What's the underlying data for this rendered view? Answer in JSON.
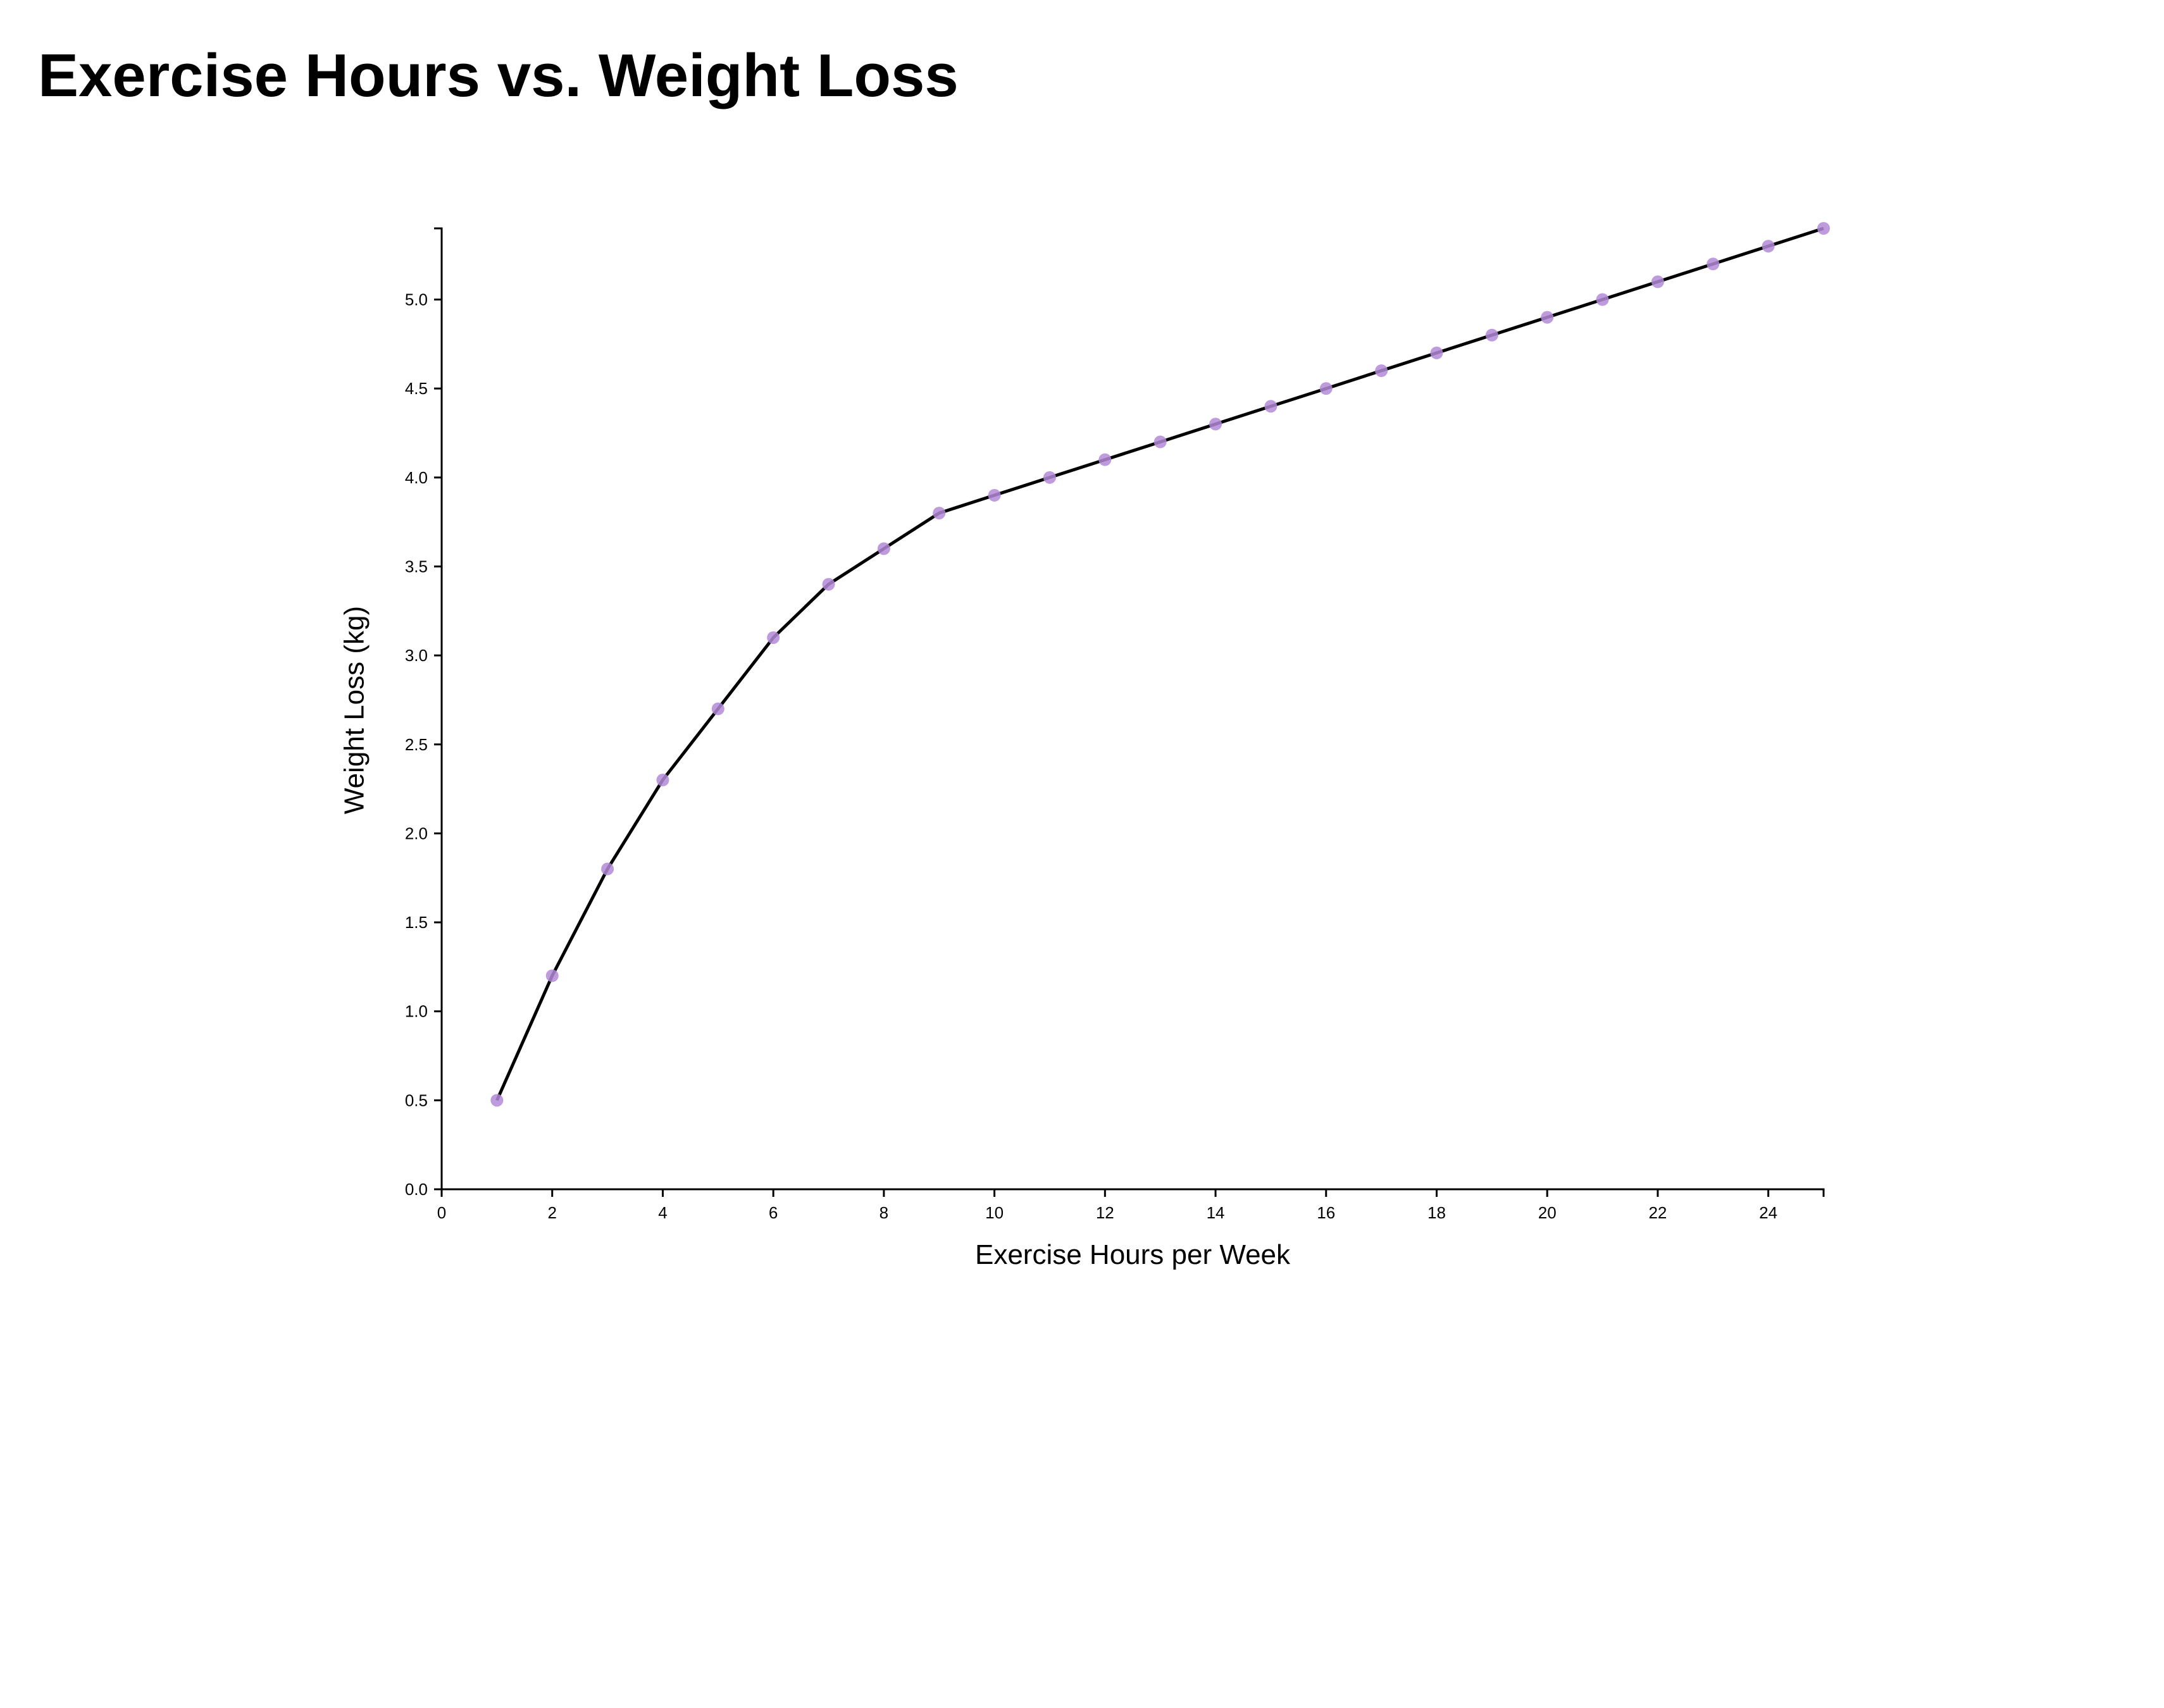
{
  "chart_data": {
    "type": "line",
    "title": "Exercise Hours vs. Weight Loss",
    "xlabel": "Exercise Hours per Week",
    "ylabel": "Weight Loss (kg)",
    "xlim": [
      0,
      25
    ],
    "ylim": [
      0,
      5.4
    ],
    "x_ticks": [
      0,
      2,
      4,
      6,
      8,
      10,
      12,
      14,
      16,
      18,
      20,
      22,
      24
    ],
    "y_ticks": [
      0,
      0.5,
      1,
      1.5,
      2,
      2.5,
      3,
      3.5,
      4,
      4.5,
      5
    ],
    "x_tick_labels": [
      "0",
      "2",
      "4",
      "6",
      "8",
      "10",
      "12",
      "14",
      "16",
      "18",
      "20",
      "22",
      "24"
    ],
    "y_tick_labels": [
      "0.0",
      "0.5",
      "1.0",
      "1.5",
      "2.0",
      "2.5",
      "3.0",
      "3.5",
      "4.0",
      "4.5",
      "5.0"
    ],
    "grid": false,
    "legend": "none",
    "line_color": "#000000",
    "marker_color": "#b28ad6",
    "x": [
      1,
      2,
      3,
      4,
      5,
      6,
      7,
      8,
      9,
      10,
      11,
      12,
      13,
      14,
      15,
      16,
      17,
      18,
      19,
      20,
      21,
      22,
      23,
      24,
      25
    ],
    "series": [
      {
        "values": [
          0.5,
          1.2,
          1.8,
          2.3,
          2.7,
          3.1,
          3.4,
          3.6,
          3.8,
          3.9,
          4.0,
          4.1,
          4.2,
          4.3,
          4.4,
          4.5,
          4.6,
          4.7,
          4.8,
          4.9,
          5.0,
          5.1,
          5.2,
          5.3,
          5.4
        ]
      }
    ]
  }
}
